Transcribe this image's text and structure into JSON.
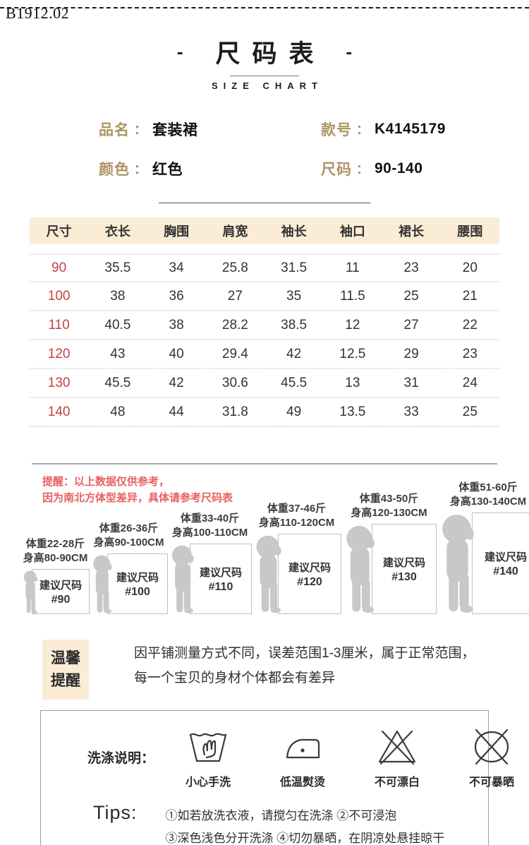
{
  "watermark": "B1912.02",
  "header": {
    "dash_left": "-",
    "title": "尺码表",
    "dash_right": "-",
    "subtitle": "SIZE CHART"
  },
  "product": {
    "fields": [
      {
        "label": "品名",
        "colon": "：",
        "value": "套装裙"
      },
      {
        "label": "款号",
        "colon": "：",
        "value": "K4145179"
      },
      {
        "label": "颜色",
        "colon": "：",
        "value": "红色"
      },
      {
        "label": "尺码",
        "colon": "：",
        "value": "90-140"
      }
    ]
  },
  "chart_data": {
    "type": "table",
    "title": "尺码表 SIZE CHART",
    "columns": [
      "尺寸",
      "衣长",
      "胸围",
      "肩宽",
      "袖长",
      "袖口",
      "裙长",
      "腰围"
    ],
    "rows": [
      [
        "90",
        "35.5",
        "34",
        "25.8",
        "31.5",
        "11",
        "23",
        "20"
      ],
      [
        "100",
        "38",
        "36",
        "27",
        "35",
        "11.5",
        "25",
        "21"
      ],
      [
        "110",
        "40.5",
        "38",
        "28.2",
        "38.5",
        "12",
        "27",
        "22"
      ],
      [
        "120",
        "43",
        "40",
        "29.4",
        "42",
        "12.5",
        "29",
        "23"
      ],
      [
        "130",
        "45.5",
        "42",
        "30.6",
        "45.5",
        "13",
        "31",
        "24"
      ],
      [
        "140",
        "48",
        "44",
        "31.8",
        "49",
        "13.5",
        "33",
        "25"
      ]
    ]
  },
  "reminder": {
    "line1": "提醒：以上数据仅供参考，",
    "line2": "因为南北方体型差异，具体请参考尺码表"
  },
  "size_guide": {
    "items": [
      {
        "weight": "体重22-28斤",
        "height": "身高80-90CM",
        "label": "建议尺码",
        "size": "#90"
      },
      {
        "weight": "体重26-36斤",
        "height": "身高90-100CM",
        "label": "建议尺码",
        "size": "#100"
      },
      {
        "weight": "体重33-40斤",
        "height": "身高100-110CM",
        "label": "建议尺码",
        "size": "#110"
      },
      {
        "weight": "体重37-46斤",
        "height": "身高110-120CM",
        "label": "建议尺码",
        "size": "#120"
      },
      {
        "weight": "体重43-50斤",
        "height": "身高120-130CM",
        "label": "建议尺码",
        "size": "#130"
      },
      {
        "weight": "体重51-60斤",
        "height": "身高130-140CM",
        "label": "建议尺码",
        "size": "#140"
      }
    ]
  },
  "warm_notice": {
    "label_line1": "温馨",
    "label_line2": "提醒",
    "text_line1": "因平铺测量方式不同，误差范围1-3厘米，属于正常范围，",
    "text_line2": "每一个宝贝的身材个体都会有差异"
  },
  "care": {
    "label": "洗涤说明：",
    "icons": [
      {
        "name": "hand-wash-icon",
        "caption": "小心手洗"
      },
      {
        "name": "iron-low-icon",
        "caption": "低温熨烫"
      },
      {
        "name": "no-bleach-icon",
        "caption": "不可漂白"
      },
      {
        "name": "no-sun-icon",
        "caption": "不可暴晒"
      }
    ],
    "tips_label": "Tips:",
    "tips_line1": "①如若放洗衣液，请搅匀在洗涤 ②不可浸泡",
    "tips_line2": "③深色浅色分开洗涤 ④切勿暴晒，在阴凉处悬挂晾干"
  },
  "colors": {
    "header_band_bg": "#fbecd5",
    "label_tan": "#ae9464",
    "size_red": "#c84040",
    "reminder_red": "#e86060",
    "silhouette_gray": "#c8c8c8"
  }
}
